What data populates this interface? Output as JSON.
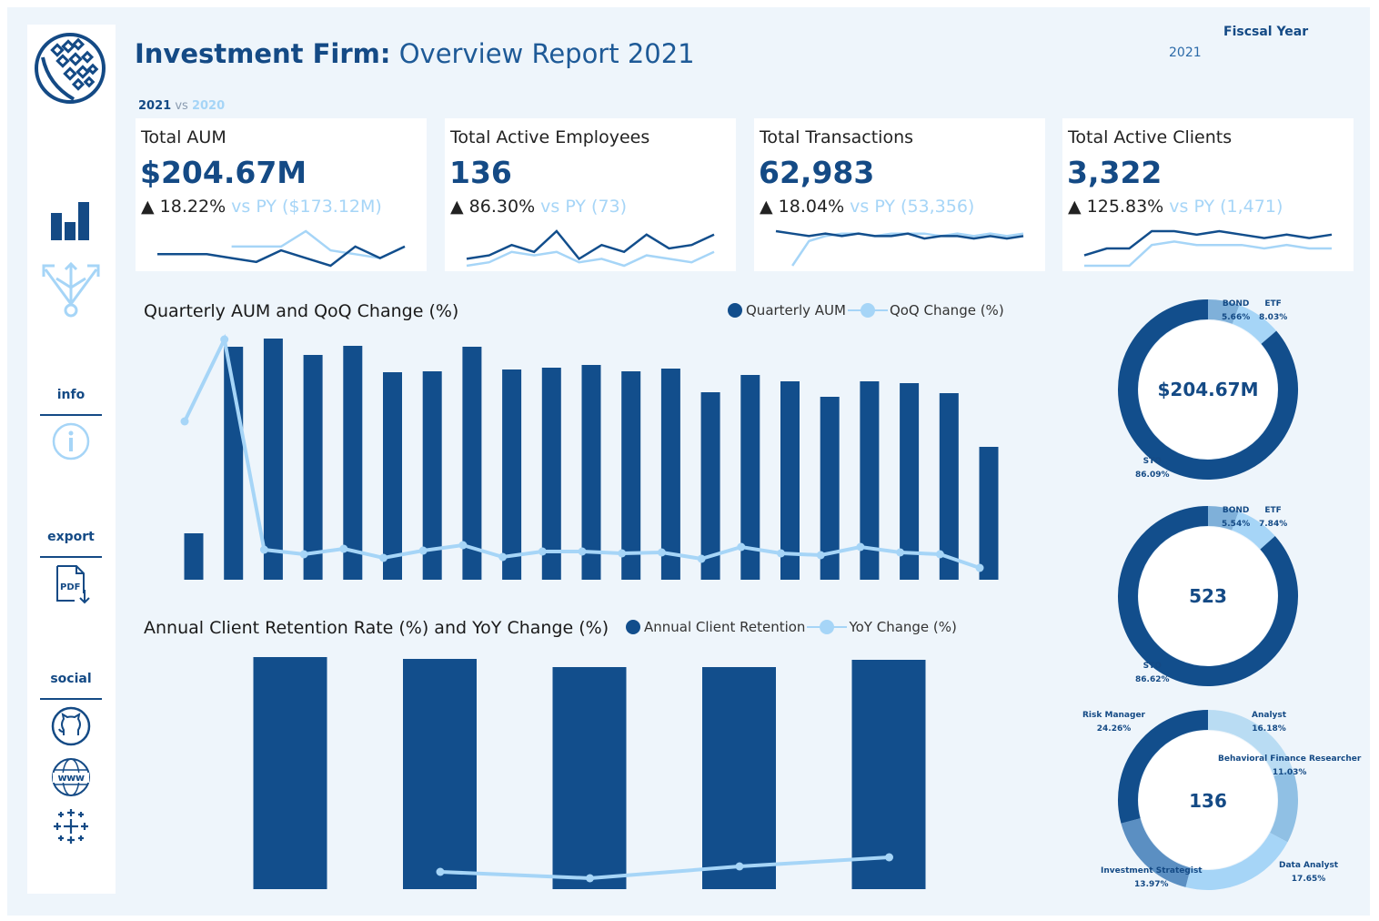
{
  "header": {
    "title_bold": "Investment Firm:",
    "title_rest": "Overview Report",
    "title_year": "2021",
    "fiscal_year_label": "Fiscsal Year",
    "fiscal_year_value": "2021",
    "compare_current": "2021",
    "compare_vs": "vs",
    "compare_prior": "2020"
  },
  "sidebar": {
    "info_label": "info",
    "export_label": "export",
    "social_label": "social",
    "pdf_text": "PDF",
    "www_text": "www"
  },
  "kpis": [
    {
      "label": "Total AUM",
      "value": "$204.67M",
      "arrow": "▲",
      "change": "18.22%",
      "py": "vs PY ($173.12M)",
      "current": [
        6,
        6,
        6,
        5,
        4,
        7,
        5,
        3,
        8,
        5,
        8
      ],
      "prior": [
        null,
        null,
        null,
        8,
        8,
        8,
        12,
        7,
        6,
        5,
        8
      ]
    },
    {
      "label": "Total Active Employees",
      "value": "136",
      "arrow": "▲",
      "change": "86.30%",
      "py": "vs PY (73)",
      "current": [
        3,
        4,
        7,
        5,
        11,
        3,
        7,
        5,
        10,
        6,
        7,
        10
      ],
      "prior": [
        1,
        2,
        5,
        4,
        5,
        2,
        3,
        1,
        4,
        3,
        2,
        5
      ]
    },
    {
      "label": "Total Transactions",
      "value": "62,983",
      "arrow": "▲",
      "change": "18.04%",
      "py": "vs PY (53,356)",
      "current": [
        8,
        7,
        6,
        7,
        6,
        7,
        6,
        6,
        7,
        5,
        6,
        6,
        5,
        6,
        5,
        6
      ],
      "prior": [
        null,
        -6,
        4,
        6,
        7,
        7,
        6,
        7,
        7,
        7,
        6,
        7,
        6,
        7,
        6,
        7
      ]
    },
    {
      "label": "Total Active Clients",
      "value": "3,322",
      "arrow": "▲",
      "change": "125.83%",
      "py": "vs PY (1,471)",
      "current": [
        4,
        6,
        6,
        11,
        11,
        10,
        11,
        10,
        9,
        10,
        9,
        10
      ],
      "prior": [
        1,
        1,
        1,
        7,
        8,
        7,
        7,
        7,
        6,
        7,
        6,
        6
      ]
    }
  ],
  "chart_data": [
    {
      "type": "bar",
      "title": "Quarterly AUM and QoQ Change (%)",
      "series": [
        {
          "name": "Quarterly AUM",
          "values": [
            51,
            256,
            265,
            247,
            257,
            228,
            229,
            256,
            231,
            233,
            236,
            229,
            232,
            206,
            225,
            218,
            201,
            218,
            216,
            205,
            146
          ]
        },
        {
          "name": "QoQ Change (%)",
          "values": [
            174,
            264,
            33,
            28,
            34,
            24,
            32,
            38,
            25,
            31,
            31,
            29,
            30,
            23,
            36,
            29,
            27,
            36,
            30,
            28,
            13
          ]
        }
      ]
    },
    {
      "type": "bar",
      "title": "Annual Client Retention Rate (%) and YoY Change (%)",
      "series": [
        {
          "name": "Annual Client Retention",
          "values": [
            255,
            253,
            244,
            244,
            252
          ]
        },
        {
          "name": "YoY Change (%)",
          "values": [
            19,
            12,
            25,
            35
          ]
        }
      ]
    },
    {
      "type": "pie",
      "center_label": "$204.67M",
      "slices": [
        {
          "label": "STOCK",
          "shown_label": "STO",
          "value": 86.09,
          "pct": "86.09%"
        },
        {
          "label": "BOND",
          "value": 5.66,
          "pct": "5.66%"
        },
        {
          "label": "ETF",
          "value": 8.03,
          "pct": "8.03%"
        }
      ]
    },
    {
      "type": "pie",
      "center_label": "523",
      "slices": [
        {
          "label": "STOCK",
          "shown_label": "STO",
          "value": 86.62,
          "pct": "86.62%"
        },
        {
          "label": "BOND",
          "value": 5.54,
          "pct": "5.54%"
        },
        {
          "label": "ETF",
          "value": 7.84,
          "pct": "7.84%"
        }
      ]
    },
    {
      "type": "pie",
      "center_label": "136",
      "slices": [
        {
          "label": "Analyst",
          "value": 16.18,
          "pct": "16.18%"
        },
        {
          "label": "Behavioral Finance Researcher",
          "value": 11.03,
          "pct": "11.03%"
        },
        {
          "label": "Data Analyst",
          "value": 17.65,
          "pct": "17.65%"
        },
        {
          "label": "Investment Strategist",
          "value": 13.97,
          "pct": "13.97%"
        },
        {
          "label": "Risk Manager",
          "value": 24.26,
          "pct": "24.26%"
        }
      ]
    }
  ],
  "colors": {
    "primary": "#124e8c",
    "light": "#a6d5f7",
    "medium": "#7fb0d9",
    "bg": "#eef5fb"
  }
}
